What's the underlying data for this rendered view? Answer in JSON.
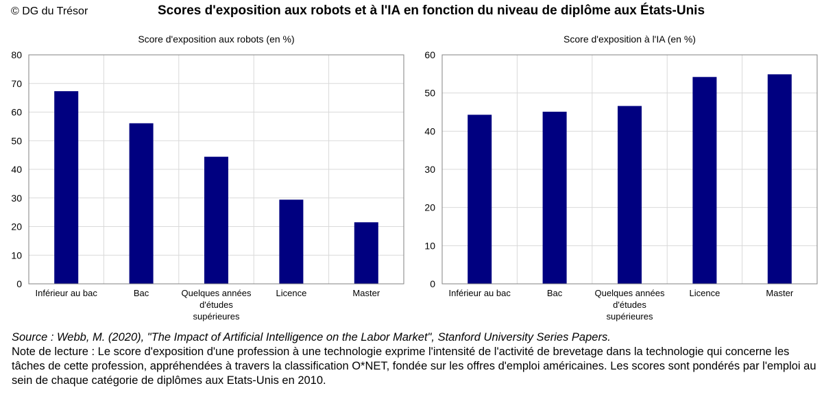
{
  "header": {
    "copyright": "© DG du Trésor",
    "title": "Scores d'exposition aux robots et à l'IA en fonction du niveau de diplôme aux États-Unis"
  },
  "colors": {
    "bar": "#000080",
    "grid": "#d9d9d9",
    "axis": "#808080"
  },
  "chart_data": [
    {
      "type": "bar",
      "title": "Score d'exposition aux robots (en %)",
      "categories": [
        [
          "Inférieur au bac"
        ],
        [
          "Bac"
        ],
        [
          "Quelques années",
          "d'études",
          "supérieures"
        ],
        [
          "Licence"
        ],
        [
          "Master"
        ]
      ],
      "values": [
        67.3,
        56.1,
        44.4,
        29.4,
        21.5
      ],
      "ylim": [
        0,
        80
      ],
      "yticks": [
        0,
        10,
        20,
        30,
        40,
        50,
        60,
        70,
        80
      ],
      "grid": true,
      "xlabel": "",
      "ylabel": ""
    },
    {
      "type": "bar",
      "title": "Score d'exposition à l'IA (en %)",
      "categories": [
        [
          "Inférieur au bac"
        ],
        [
          "Bac"
        ],
        [
          "Quelques années",
          "d'études",
          "supérieures"
        ],
        [
          "Licence"
        ],
        [
          "Master"
        ]
      ],
      "values": [
        44.3,
        45.1,
        46.6,
        54.2,
        54.9
      ],
      "ylim": [
        0,
        60
      ],
      "yticks": [
        0,
        10,
        20,
        30,
        40,
        50,
        60
      ],
      "grid": true,
      "xlabel": "",
      "ylabel": ""
    }
  ],
  "footer": {
    "source": "Source : Webb, M. (2020), \"The Impact of Artificial Intelligence on the Labor Market\", Stanford University Series Papers.",
    "note": "Note de lecture : Le score d'exposition d'une profession à une technologie exprime l'intensité de l'activité de brevetage dans la technologie qui concerne les tâches de cette profession, appréhendées à travers la classification O*NET, fondée sur les offres d'emploi américaines. Les scores sont pondérés par l'emploi au sein de chaque catégorie de diplômes aux Etats-Unis en 2010."
  }
}
